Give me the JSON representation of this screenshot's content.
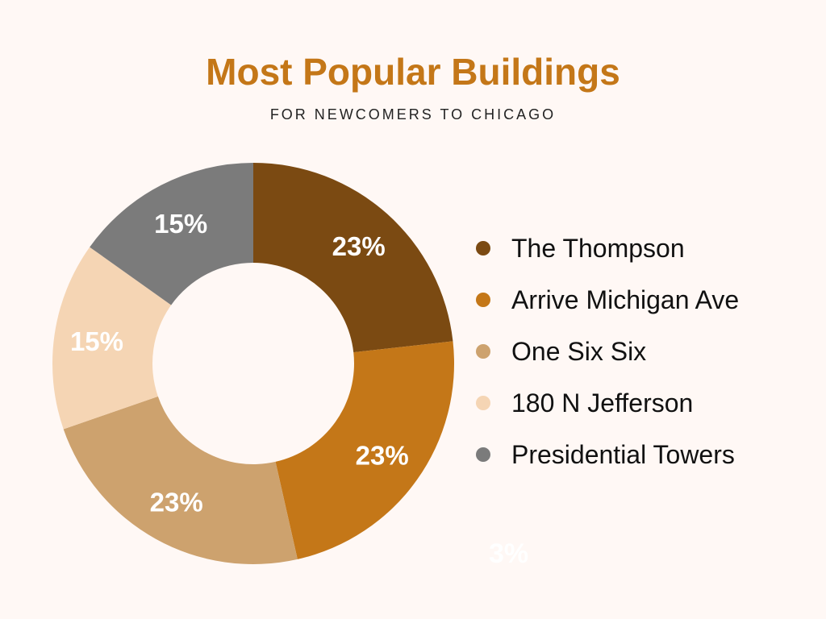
{
  "chart_data": {
    "type": "pie",
    "variant": "donut",
    "title": "Most Popular Buildings",
    "subtitle": "FOR NEWCOMERS TO CHICAGO",
    "categories": [
      "The Thompson",
      "Arrive Michigan Ave",
      "One Six Six",
      "180 N Jefferson",
      "Presidential Towers"
    ],
    "values": [
      23,
      23,
      23,
      15,
      15
    ],
    "labels": [
      "23%",
      "23%",
      "23%",
      "15%",
      "15%"
    ],
    "colors": [
      "#7B4A12",
      "#C47718",
      "#CDA26E",
      "#F5D5B4",
      "#7B7B7B"
    ],
    "label_colors": [
      "#FFFFFF",
      "#FFFFFF",
      "#FFFFFF",
      "#FFFFFF",
      "#FFFFFF"
    ],
    "legend_position": "right",
    "annotations": [
      "3%"
    ]
  }
}
